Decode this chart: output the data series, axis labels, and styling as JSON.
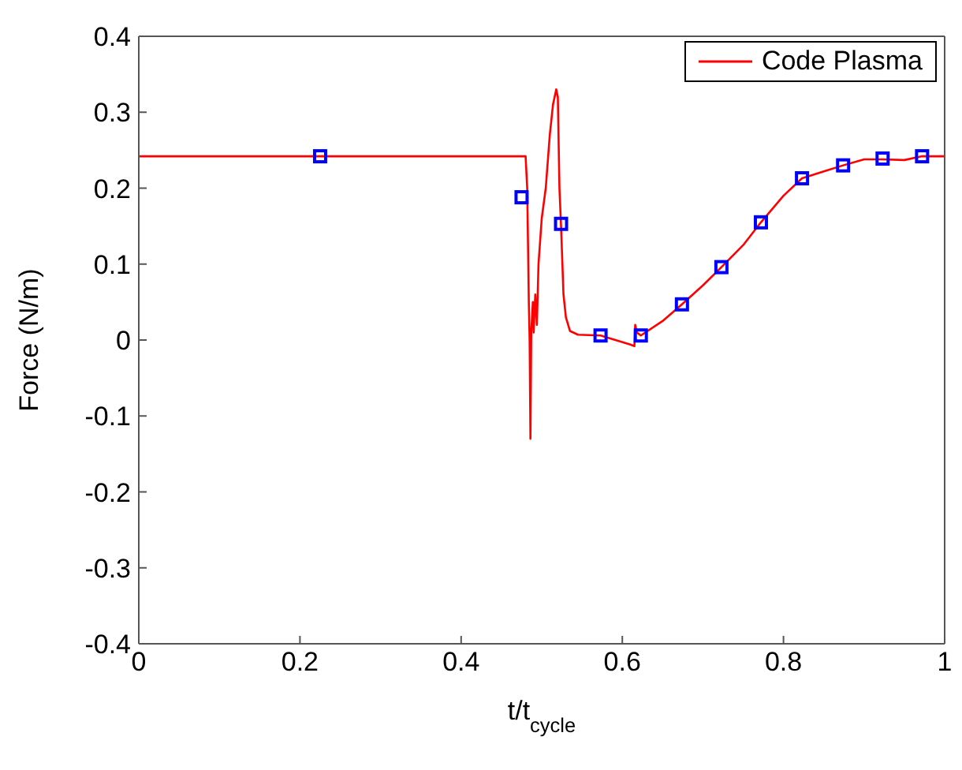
{
  "chart_data": {
    "type": "line",
    "xlabel": "t/t$_{cycle}$",
    "ylabel": "Force (N/m)",
    "xlim": [
      0,
      1
    ],
    "xticks": [
      0,
      0.2,
      0.4,
      0.6,
      0.8,
      1
    ],
    "ylim": [
      -0.4,
      0.4
    ],
    "yticks": [
      -0.4,
      -0.3,
      -0.2,
      -0.1,
      0,
      0.1,
      0.2,
      0.3,
      0.4
    ],
    "legend": "top right",
    "series": [
      {
        "name": "Code Plasma",
        "color": "#ff0000",
        "marker": "none",
        "x": [
          0,
          0.48,
          0.482,
          0.484,
          0.485,
          0.486,
          0.487,
          0.489,
          0.49,
          0.492,
          0.494,
          0.496,
          0.5,
          0.505,
          0.51,
          0.514,
          0.518,
          0.52,
          0.522,
          0.524,
          0.527,
          0.53,
          0.535,
          0.545,
          0.573,
          0.61,
          0.615,
          0.616,
          0.618,
          0.623,
          0.65,
          0.674,
          0.7,
          0.723,
          0.75,
          0.772,
          0.8,
          0.823,
          0.85,
          0.874,
          0.9,
          0.923,
          0.95,
          0.972,
          1
        ],
        "values": [
          0.242,
          0.242,
          0.2,
          0.05,
          0,
          -0.13,
          0.01,
          0.05,
          0.01,
          0.06,
          0.02,
          0.1,
          0.16,
          0.2,
          0.27,
          0.31,
          0.33,
          0.32,
          0.2,
          0.15,
          0.06,
          0.03,
          0.012,
          0.007,
          0.006,
          -0.006,
          -0.008,
          0.02,
          0.01,
          0.006,
          0.025,
          0.047,
          0.072,
          0.096,
          0.125,
          0.155,
          0.19,
          0.213,
          0.222,
          0.23,
          0.238,
          0.238,
          0.237,
          0.242,
          0.242
        ]
      },
      {
        "type": "scatter",
        "color": "#0000ff",
        "marker": "square",
        "x": [
          0.225,
          0.475,
          0.524,
          0.573,
          0.623,
          0.674,
          0.723,
          0.772,
          0.823,
          0.874,
          0.923,
          0.972
        ],
        "values": [
          0.242,
          0.188,
          0.153,
          0.006,
          0.006,
          0.047,
          0.096,
          0.155,
          0.213,
          0.23,
          0.239,
          0.242
        ]
      }
    ]
  }
}
